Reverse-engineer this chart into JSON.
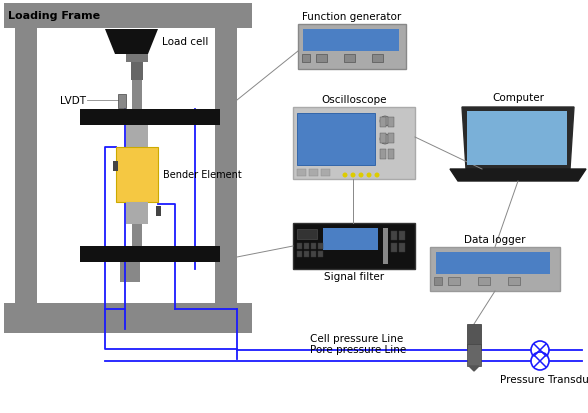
{
  "bg_color": "#ffffff",
  "frame_color": "#888888",
  "frame_dark": "#666666",
  "black": "#111111",
  "yellow": "#f5c842",
  "dark_gray": "#555555",
  "mid_gray": "#999999",
  "light_gray": "#bbbbbb",
  "device_bg": "#aaaaaa",
  "device_screen": "#4b7fc4",
  "wire_color": "#1a1aff",
  "connect_color": "#666666",
  "title": "Loading Frame",
  "labels": {
    "load_cell": "Load cell",
    "lvdt": "LVDT",
    "bender_element": "Bender Element",
    "function_generator": "Function generator",
    "oscilloscope": "Oscilloscope",
    "signal_filter": "Signal filter",
    "computer": "Computer",
    "data_logger": "Data logger",
    "cell_pressure": "Cell pressure Line",
    "pore_pressure": "Pore pressure Line",
    "pressure_transducer": "Pressure Transducer"
  }
}
